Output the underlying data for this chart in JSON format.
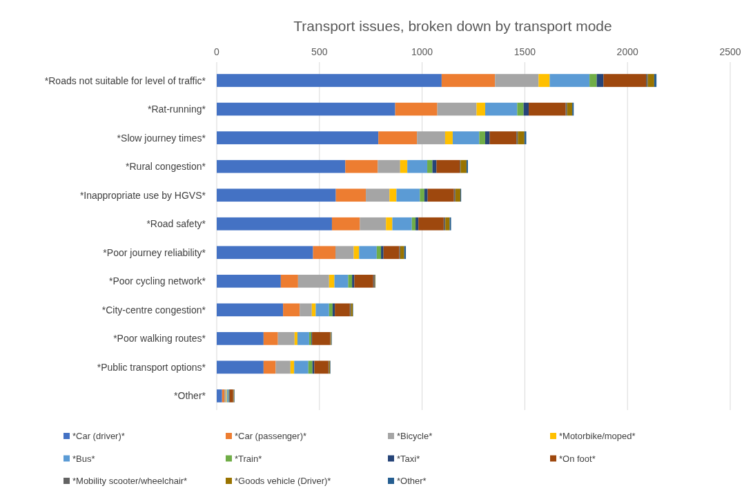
{
  "chart_data": {
    "type": "bar",
    "orientation": "horizontal",
    "stacked": true,
    "title": "Transport issues, broken down by transport mode",
    "categories": [
      "*Roads not suitable for level of traffic*",
      "*Rat-running*",
      "*Slow journey times*",
      "*Rural congestion*",
      "*Inappropriate use by HGVS*",
      "*Road safety*",
      "*Poor journey reliability*",
      "*Poor cycling network*",
      "*City-centre congestion*",
      "*Poor walking routes*",
      "*Public transport options*",
      "*Other*"
    ],
    "xlim": [
      0,
      2500
    ],
    "xticks": [
      0,
      500,
      1000,
      1500,
      2000,
      2500
    ],
    "grid": "x",
    "legend": "bottom",
    "series": [
      {
        "name": "*Car (driver)*",
        "color": "#4472c4",
        "values": [
          1095,
          869,
          787,
          626,
          580,
          561,
          469,
          312,
          323,
          228,
          228,
          26
        ]
      },
      {
        "name": "*Car (passenger)*",
        "color": "#ed7d31",
        "values": [
          260,
          205,
          188,
          158,
          146,
          136,
          109,
          84,
          81,
          70,
          59,
          11
        ]
      },
      {
        "name": "*Bicycle*",
        "color": "#a5a5a5",
        "values": [
          212,
          191,
          137,
          109,
          115,
          127,
          89,
          151,
          59,
          81,
          72,
          8
        ]
      },
      {
        "name": "*Motorbike/moped*",
        "color": "#ffc000",
        "values": [
          54,
          42,
          37,
          35,
          34,
          31,
          26,
          26,
          19,
          14,
          18,
          4
        ]
      },
      {
        "name": "*Bus*",
        "color": "#5b9bd5",
        "values": [
          194,
          156,
          129,
          97,
          114,
          95,
          86,
          67,
          65,
          57,
          69,
          7
        ]
      },
      {
        "name": "*Train*",
        "color": "#70ad47",
        "values": [
          35,
          31,
          29,
          25,
          22,
          18,
          21,
          19,
          17,
          11,
          20,
          3
        ]
      },
      {
        "name": "*Taxi*",
        "color": "#264478",
        "values": [
          33,
          25,
          22,
          20,
          16,
          14,
          12,
          11,
          11,
          3,
          9,
          4
        ]
      },
      {
        "name": "*On foot*",
        "color": "#9e480e",
        "values": [
          207,
          180,
          130,
          113,
          128,
          123,
          77,
          92,
          73,
          89,
          69,
          17
        ]
      },
      {
        "name": "*Mobility scooter/wheelchair*",
        "color": "#636363",
        "values": [
          9,
          7,
          7,
          4,
          7,
          8,
          5,
          7,
          6,
          2,
          3,
          2
        ]
      },
      {
        "name": "*Goods vehicle (Driver)*",
        "color": "#997300",
        "values": [
          31,
          25,
          32,
          29,
          24,
          21,
          19,
          3,
          8,
          3,
          5,
          3
        ]
      },
      {
        "name": "*Other*",
        "color": "#255e91",
        "values": [
          11,
          7,
          9,
          7,
          4,
          7,
          8,
          1,
          2,
          2,
          2,
          2
        ]
      }
    ]
  }
}
